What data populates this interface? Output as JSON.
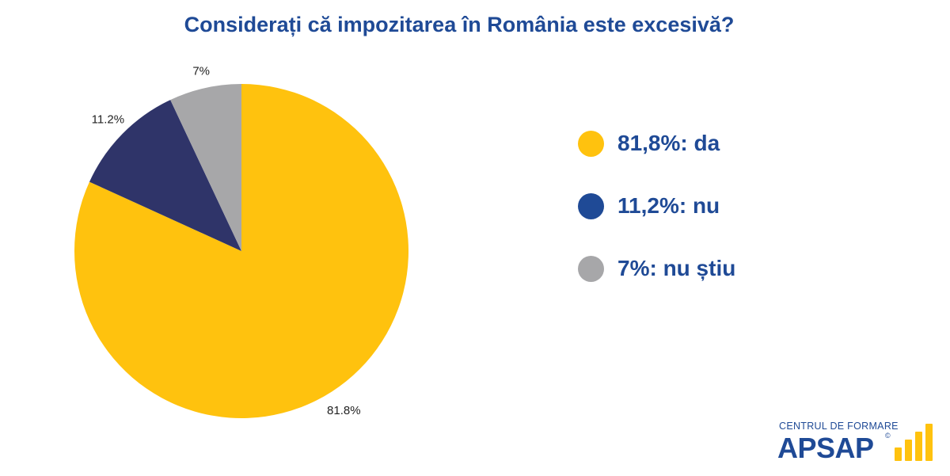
{
  "chart_data": {
    "type": "pie",
    "title": "Considerați că impozitarea în România este excesivă?",
    "slices": [
      {
        "label": "da",
        "value": 81.8,
        "data_label": "81.8%",
        "legend_text": "81,8%: da",
        "color": "#ffc20e",
        "legend_color": "#ffc20e"
      },
      {
        "label": "nu",
        "value": 11.2,
        "data_label": "11.2%",
        "legend_text": "11,2%: nu",
        "color": "#2f3469",
        "legend_color": "#1f4a96"
      },
      {
        "label": "nu știu",
        "value": 7,
        "data_label": "7%",
        "legend_text": "7%: nu știu",
        "color": "#a7a7a9",
        "legend_color": "#a7a7a9"
      }
    ],
    "legend_position": "right"
  },
  "logo": {
    "subtitle": "CENTRUL DE FORMARE",
    "name": "APSAP",
    "mark": "©",
    "bars_color": "#ffc20e"
  }
}
